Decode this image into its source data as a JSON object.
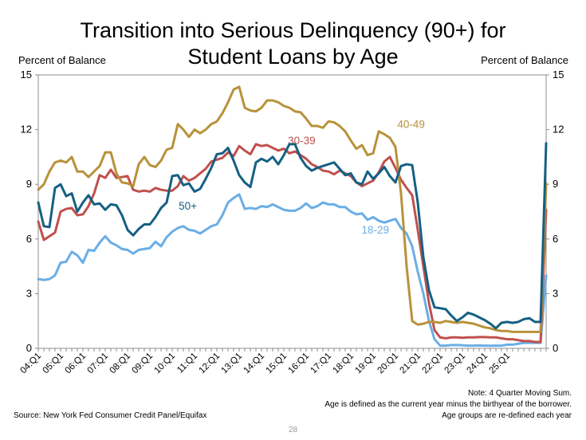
{
  "chart_data": {
    "type": "line",
    "title_line1": "Transition into Serious Delinquency (90+) for",
    "title_line2": "Student Loans by Age",
    "ylabel_left": "Percent of Balance",
    "ylabel_right": "Percent of Balance",
    "ylim": [
      0,
      15
    ],
    "yticks": [
      "0",
      "3",
      "6",
      "9",
      "12",
      "15"
    ],
    "xtick_labels": [
      "04:Q1",
      "05:Q1",
      "06:Q1",
      "07:Q1",
      "08:Q1",
      "09:Q1",
      "10:Q1",
      "11:Q1",
      "12:Q1",
      "13:Q1",
      "14:Q1",
      "15:Q1",
      "16:Q1",
      "17:Q1",
      "18:Q1",
      "19:Q1",
      "20:Q1",
      "21:Q1",
      "22:Q1",
      "23:Q1",
      "24:Q1",
      "25:Q1"
    ],
    "x_start_year": 2004,
    "series": [
      {
        "name": "18-29",
        "color": "#6aaee6",
        "label_pos": [
          2019.1,
          6.3
        ],
        "values": [
          3.8,
          3.75,
          3.8,
          4.0,
          4.7,
          4.75,
          5.3,
          5.1,
          4.7,
          5.4,
          5.35,
          5.8,
          6.15,
          5.8,
          5.65,
          5.45,
          5.4,
          5.2,
          5.4,
          5.45,
          5.5,
          5.85,
          5.6,
          6.1,
          6.4,
          6.6,
          6.7,
          6.5,
          6.45,
          6.3,
          6.5,
          6.7,
          6.8,
          7.3,
          8.0,
          8.25,
          8.45,
          7.65,
          7.7,
          7.65,
          7.8,
          7.75,
          7.9,
          7.75,
          7.6,
          7.55,
          7.55,
          7.7,
          7.95,
          7.7,
          7.8,
          8.0,
          7.9,
          7.9,
          7.75,
          7.75,
          7.5,
          7.35,
          7.4,
          7.05,
          7.2,
          7.0,
          6.9,
          7.0,
          7.1,
          6.6,
          6.3,
          5.6,
          4.2,
          3.0,
          1.5,
          0.5,
          0.15,
          0.15,
          0.18,
          0.18,
          0.17,
          0.15,
          0.15,
          0.16,
          0.15,
          0.14,
          0.15,
          0.15,
          0.2,
          0.2,
          0.25,
          0.3,
          0.3,
          0.3,
          0.3,
          4.0
        ]
      },
      {
        "name": "30-39",
        "color": "#c0504d",
        "label_pos": [
          2015.8,
          11.2
        ],
        "values": [
          6.95,
          5.95,
          6.15,
          6.35,
          7.5,
          7.65,
          7.7,
          7.3,
          7.35,
          7.8,
          8.5,
          9.5,
          9.35,
          9.8,
          9.35,
          9.4,
          9.45,
          8.7,
          8.6,
          8.65,
          8.6,
          8.8,
          8.7,
          8.65,
          8.65,
          8.9,
          9.45,
          9.2,
          9.35,
          9.6,
          9.85,
          10.25,
          10.35,
          10.45,
          10.75,
          10.55,
          11.1,
          10.85,
          10.65,
          11.2,
          11.1,
          11.15,
          11.0,
          10.85,
          10.95,
          10.7,
          10.8,
          10.6,
          10.4,
          10.1,
          9.95,
          9.75,
          9.7,
          9.55,
          9.75,
          9.6,
          9.45,
          9.1,
          8.9,
          9.05,
          9.2,
          9.65,
          10.25,
          10.5,
          9.9,
          9.25,
          8.8,
          8.4,
          6.5,
          4.5,
          2.5,
          1.0,
          0.6,
          0.55,
          0.6,
          0.6,
          0.58,
          0.6,
          0.6,
          0.62,
          0.62,
          0.6,
          0.6,
          0.55,
          0.5,
          0.5,
          0.45,
          0.4,
          0.4,
          0.35,
          0.35,
          7.6
        ]
      },
      {
        "name": "40-49",
        "color": "#b8923a",
        "label_pos": [
          2020.7,
          12.1
        ],
        "values": [
          8.7,
          9.0,
          9.7,
          10.2,
          10.3,
          10.2,
          10.5,
          9.7,
          9.7,
          9.4,
          9.7,
          10.0,
          10.75,
          10.75,
          9.6,
          9.1,
          9.05,
          8.9,
          10.1,
          10.5,
          10.05,
          9.95,
          10.3,
          10.9,
          11.0,
          12.3,
          12.0,
          11.6,
          12.0,
          11.8,
          12.0,
          12.3,
          12.45,
          12.9,
          13.5,
          14.2,
          14.35,
          13.2,
          13.05,
          13.0,
          13.2,
          13.6,
          13.6,
          13.5,
          13.3,
          13.2,
          13.0,
          12.95,
          12.6,
          12.2,
          12.2,
          12.1,
          12.45,
          12.4,
          12.2,
          11.9,
          11.4,
          10.95,
          11.15,
          10.6,
          10.7,
          11.9,
          11.75,
          11.55,
          11.05,
          8.5,
          4.5,
          1.5,
          1.3,
          1.35,
          1.45,
          1.45,
          1.4,
          1.5,
          1.45,
          1.4,
          1.45,
          1.4,
          1.35,
          1.25,
          1.15,
          1.1,
          1.0,
          0.95,
          0.95,
          0.9,
          0.9,
          0.9,
          0.9,
          0.9,
          0.9,
          9.05
        ]
      },
      {
        "name": "50+",
        "color": "#156082",
        "label_pos": [
          2010.7,
          7.6
        ],
        "values": [
          8.0,
          6.7,
          6.65,
          8.8,
          9.0,
          8.35,
          8.5,
          7.5,
          8.0,
          8.4,
          7.9,
          7.95,
          7.6,
          7.9,
          7.85,
          7.3,
          6.5,
          6.2,
          6.55,
          6.8,
          6.8,
          7.2,
          7.7,
          8.0,
          9.45,
          9.5,
          8.95,
          9.05,
          8.6,
          8.75,
          9.3,
          9.9,
          10.65,
          10.7,
          11.0,
          10.3,
          9.5,
          9.1,
          8.85,
          10.2,
          10.4,
          10.25,
          10.5,
          10.1,
          10.6,
          11.2,
          11.2,
          10.45,
          10.0,
          9.75,
          9.9,
          10.0,
          10.1,
          10.2,
          9.85,
          9.5,
          9.6,
          9.1,
          9.0,
          9.7,
          9.3,
          9.6,
          9.95,
          9.45,
          9.1,
          10.0,
          10.1,
          10.05,
          8.0,
          5.0,
          3.2,
          2.25,
          2.2,
          2.15,
          1.8,
          1.5,
          1.7,
          1.95,
          1.85,
          1.7,
          1.55,
          1.35,
          1.1,
          1.4,
          1.45,
          1.4,
          1.45,
          1.6,
          1.65,
          1.45,
          1.45,
          11.25
        ]
      }
    ]
  },
  "footer": {
    "note_line1": "Note: 4 Quarter Moving Sum.",
    "note_line2": "Age is defined as the current year minus the birthyear of the borrower.",
    "note_line3": "Age groups are re-defined each year",
    "source": "Source: New York Fed Consumer Credit Panel/Equifax",
    "page_number": "28"
  }
}
